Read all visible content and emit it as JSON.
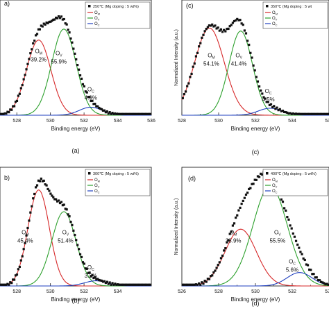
{
  "chart_data": [
    {
      "type": "line",
      "panel_label": "a)",
      "caption": "(a)",
      "legend": {
        "title": "250℃ (Mg doping : 5 wt%)",
        "entries": [
          {
            "symbol": "O",
            "sub": "M",
            "color": "#d62728"
          },
          {
            "symbol": "O",
            "sub": "V",
            "color": "#2ca02c"
          },
          {
            "symbol": "O",
            "sub": "C",
            "color": "#1f3fbf"
          }
        ],
        "placement": "top-right"
      },
      "xlabel": "Binding energy (eV)",
      "ylabel": "",
      "xlim": [
        527,
        536
      ],
      "xticks": [
        528,
        530,
        532,
        534,
        536
      ],
      "ylim": [
        0,
        1.15
      ],
      "components": [
        {
          "name": "OM",
          "center": 529.3,
          "fwhm": 1.7,
          "height": 0.75,
          "color": "#d62728"
        },
        {
          "name": "OV",
          "center": 530.8,
          "fwhm": 1.7,
          "height": 0.86,
          "color": "#2ca02c"
        },
        {
          "name": "OC",
          "center": 532.4,
          "fwhm": 1.6,
          "height": 0.08,
          "color": "#1f3fbf"
        }
      ],
      "labels": [
        {
          "sym": "O",
          "sub": "M",
          "pct": "39.2%",
          "x": 529.3,
          "y": 0.62
        },
        {
          "sym": "O",
          "sub": "V",
          "pct": "55.9%",
          "x": 530.5,
          "y": 0.6
        },
        {
          "sym": "O",
          "sub": "C",
          "pct": "4.9%",
          "x": 532.4,
          "y": 0.24
        }
      ]
    },
    {
      "type": "line",
      "panel_label": "(c)",
      "caption": "(c)",
      "legend": {
        "title": "350℃ (Mg doping : 5 wt",
        "entries": [
          {
            "symbol": "O",
            "sub": "M",
            "color": "#d62728"
          },
          {
            "symbol": "O",
            "sub": "V",
            "color": "#2ca02c"
          },
          {
            "symbol": "O",
            "sub": "C",
            "color": "#1f3fbf"
          }
        ],
        "placement": "top-right"
      },
      "xlabel": "Binding energy (eV)",
      "ylabel": "Normalized Intensity (a.u.)",
      "xlim": [
        528,
        536
      ],
      "xticks": [
        528,
        530,
        532,
        534,
        536
      ],
      "ylim": [
        0,
        1.15
      ],
      "components": [
        {
          "name": "OM",
          "center": 529.5,
          "fwhm": 1.9,
          "height": 0.87,
          "color": "#d62728"
        },
        {
          "name": "OV",
          "center": 531.2,
          "fwhm": 1.5,
          "height": 0.84,
          "color": "#2ca02c"
        },
        {
          "name": "OC",
          "center": 532.8,
          "fwhm": 1.5,
          "height": 0.07,
          "color": "#1f3fbf"
        }
      ],
      "labels": [
        {
          "sym": "O",
          "sub": "M",
          "pct": "54.1%",
          "x": 529.6,
          "y": 0.58
        },
        {
          "sym": "O",
          "sub": "V",
          "pct": "41.4%",
          "x": 531.1,
          "y": 0.58
        },
        {
          "sym": "O",
          "sub": "C",
          "pct": "4.5%",
          "x": 532.7,
          "y": 0.22
        }
      ]
    },
    {
      "type": "line",
      "panel_label": "b)",
      "caption": "(b)",
      "legend": {
        "title": "300℃ (Mg doping : 5 wt%)",
        "entries": [
          {
            "symbol": "O",
            "sub": "M",
            "color": "#d62728"
          },
          {
            "symbol": "O",
            "sub": "V",
            "color": "#2ca02c"
          },
          {
            "symbol": "O",
            "sub": "C",
            "color": "#1f3fbf"
          }
        ],
        "placement": "top-right"
      },
      "xlabel": "Binding energy (eV)",
      "ylabel": "",
      "xlim": [
        527,
        536
      ],
      "xticks": [
        528,
        530,
        532,
        534
      ],
      "ylim": [
        0,
        1.15
      ],
      "components": [
        {
          "name": "OM",
          "center": 529.3,
          "fwhm": 1.5,
          "height": 0.93,
          "color": "#d62728"
        },
        {
          "name": "OV",
          "center": 530.8,
          "fwhm": 1.7,
          "height": 0.72,
          "color": "#2ca02c"
        },
        {
          "name": "OC",
          "center": 532.7,
          "fwhm": 1.6,
          "height": 0.05,
          "color": "#1f3fbf"
        }
      ],
      "labels": [
        {
          "sym": "O",
          "sub": "M",
          "pct": "45.4%",
          "x": 528.5,
          "y": 0.5
        },
        {
          "sym": "O",
          "sub": "V",
          "pct": "51.4%",
          "x": 530.9,
          "y": 0.5
        },
        {
          "sym": "O",
          "sub": "C",
          "pct": "3.2%",
          "x": 532.4,
          "y": 0.16
        }
      ]
    },
    {
      "type": "line",
      "panel_label": "(d)",
      "caption": "(d)",
      "legend": {
        "title": "400℃ (Mg doping : 5 wt%)",
        "entries": [
          {
            "symbol": "O",
            "sub": "M",
            "color": "#d62728"
          },
          {
            "symbol": "O",
            "sub": "V",
            "color": "#2ca02c"
          },
          {
            "symbol": "O",
            "sub": "C",
            "color": "#1f3fbf"
          }
        ],
        "placement": "top-right"
      },
      "xlabel": "Binding energy (eV)",
      "ylabel": "Normalized Intensity (a.u.)",
      "xlim": [
        526,
        534
      ],
      "xticks": [
        526,
        528,
        530,
        532,
        534
      ],
      "ylim": [
        0,
        1.15
      ],
      "components": [
        {
          "name": "OM",
          "center": 529.2,
          "fwhm": 2.0,
          "height": 0.55,
          "color": "#d62728"
        },
        {
          "name": "OV",
          "center": 530.8,
          "fwhm": 2.2,
          "height": 0.97,
          "color": "#2ca02c"
        },
        {
          "name": "OC",
          "center": 532.4,
          "fwhm": 1.6,
          "height": 0.13,
          "color": "#1f3fbf"
        }
      ],
      "labels": [
        {
          "sym": "O",
          "sub": "M",
          "pct": "38.9%",
          "x": 528.8,
          "y": 0.5
        },
        {
          "sym": "O",
          "sub": "V",
          "pct": "55.5%",
          "x": 531.2,
          "y": 0.5
        },
        {
          "sym": "O",
          "sub": "C",
          "pct": "5.6%",
          "x": 532.0,
          "y": 0.22
        }
      ]
    }
  ]
}
